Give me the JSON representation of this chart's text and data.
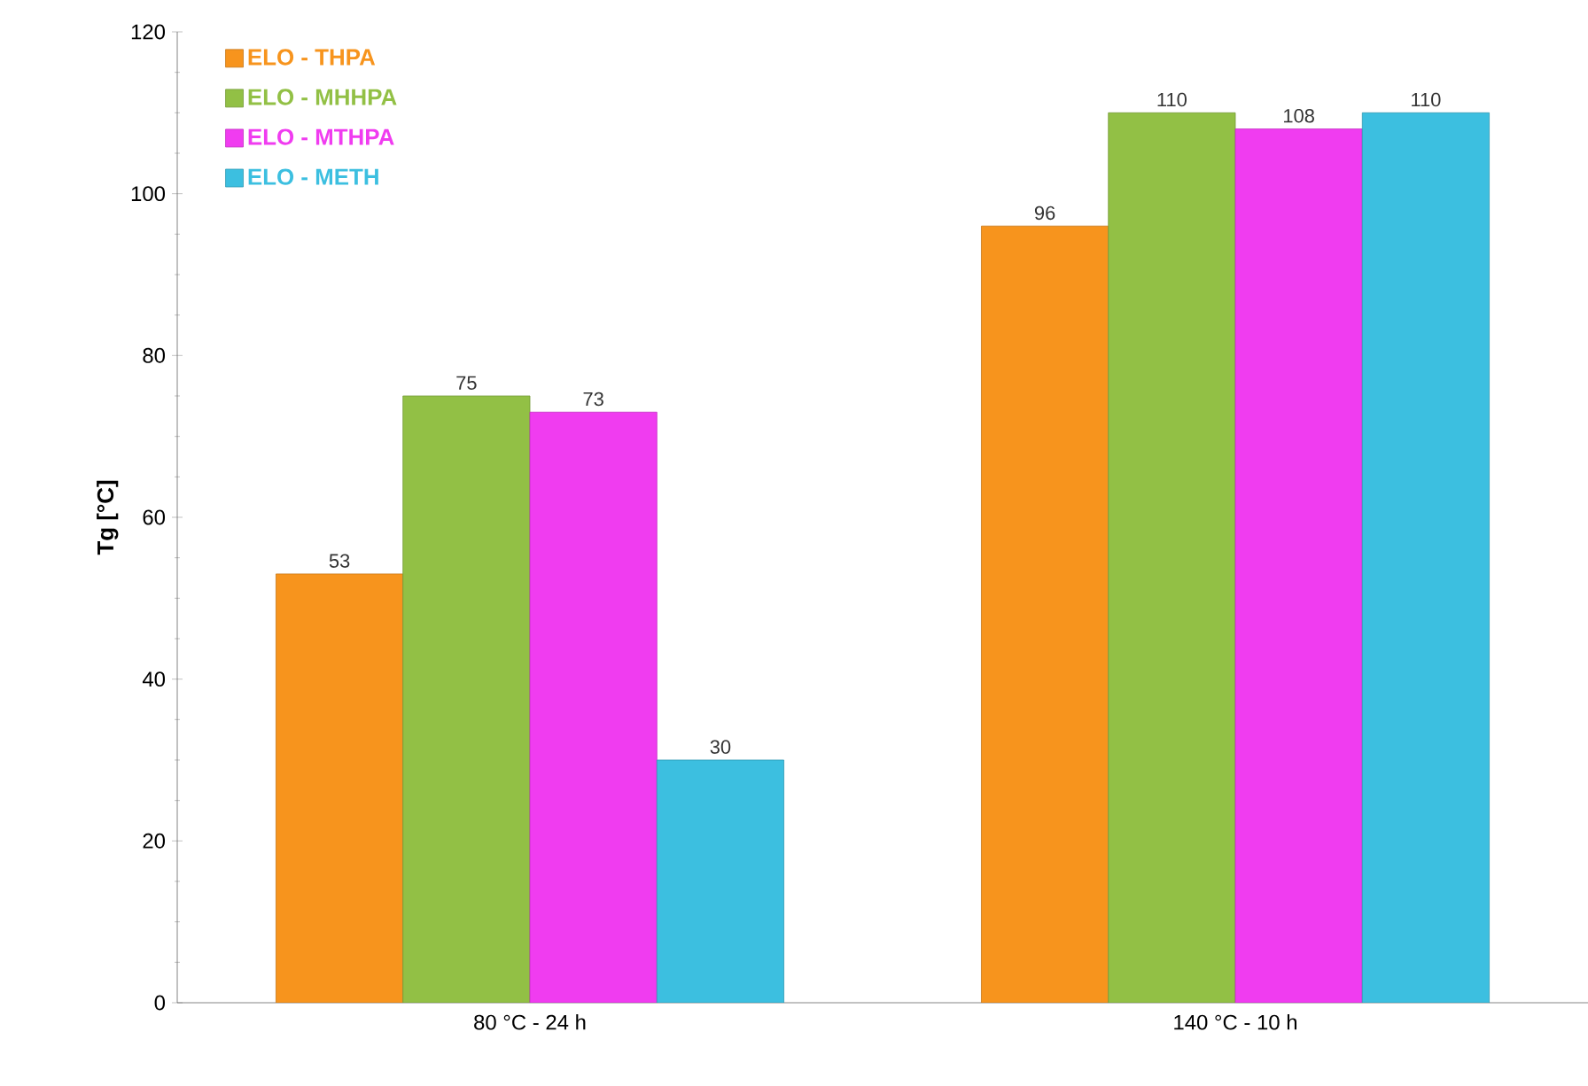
{
  "chart_data": {
    "type": "bar",
    "ylabel": "Tg [°C]",
    "categories": [
      "80 °C - 24 h",
      "140 °C - 10 h"
    ],
    "series": [
      {
        "name": "ELO - THPA",
        "color": "#f7941d",
        "values": [
          53,
          96
        ]
      },
      {
        "name": "ELO - MHHPA",
        "color": "#92c045",
        "values": [
          75,
          110
        ]
      },
      {
        "name": "ELO - MTHPA",
        "color": "#f03cf0",
        "values": [
          73,
          108
        ]
      },
      {
        "name": "ELO - METH",
        "color": "#3cbfe0",
        "values": [
          30,
          110
        ]
      }
    ],
    "ylim": [
      0,
      120
    ],
    "yticks": [
      0,
      20,
      40,
      60,
      80,
      100,
      120
    ],
    "data_labels": true,
    "legend": "top left",
    "grid": false
  }
}
